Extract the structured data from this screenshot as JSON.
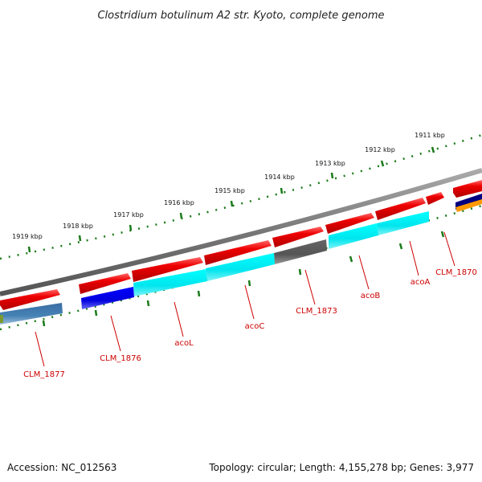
{
  "title": "Clostridium botulinum A2 str. Kyoto, complete genome",
  "footer": {
    "accession": "Accession: NC_012563",
    "topology": "Topology: circular; Length: 4,155,278 bp; Genes: 3,977"
  },
  "kbp_labels": [
    "1911 kbp",
    "1912 kbp",
    "1913 kbp",
    "1914 kbp",
    "1915 kbp",
    "1916 kbp",
    "1917 kbp",
    "1918 kbp",
    "1919 kbp"
  ],
  "gene_labels": [
    "CLM_1870",
    "acoA",
    "acoB",
    "CLM_1873",
    "acoC",
    "acoL",
    "CLM_1876",
    "CLM_1877"
  ],
  "colors": {
    "backbone": "#777777",
    "tick": "#1a7a1a",
    "red_feature": "#ee0000",
    "cyan_feature": "#00e5ee",
    "blue_feature": "#0000dd",
    "grey_feature": "#555555",
    "steel_feature": "#4682b4",
    "navy_feature": "#000080",
    "orange_feature": "#ff9900",
    "label": "#cc0000"
  }
}
